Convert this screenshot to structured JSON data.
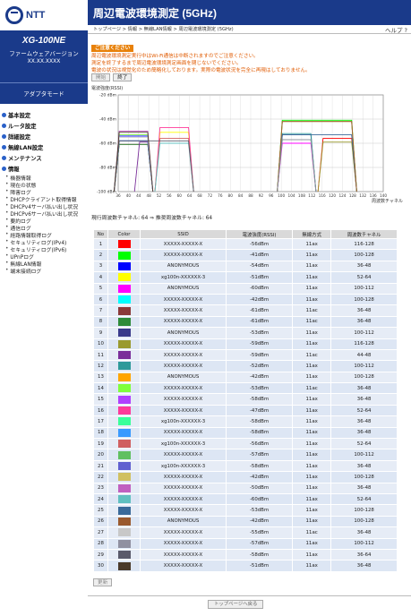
{
  "brand": "NTT",
  "model": {
    "name": "XG-100NE",
    "fw_label": "ファームウェアバージョン",
    "fw_version": "XX.XX.XXXX"
  },
  "adapter_mode": "アダプタモード",
  "menu": [
    {
      "type": "grp",
      "label": "基本設定"
    },
    {
      "type": "grp",
      "label": "ルータ設定"
    },
    {
      "type": "grp",
      "label": "詳細設定"
    },
    {
      "type": "grp",
      "label": "無線LAN設定"
    },
    {
      "type": "grp",
      "label": "メンテナンス"
    },
    {
      "type": "grp",
      "label": "情報"
    },
    {
      "type": "sub",
      "label": "機器情報"
    },
    {
      "type": "sub",
      "label": "現在の状態"
    },
    {
      "type": "sub",
      "label": "障害ログ"
    },
    {
      "type": "sub",
      "label": "DHCPクライアント取得情報"
    },
    {
      "type": "sub",
      "label": "DHCPv4サーバ払い出し状況"
    },
    {
      "type": "sub",
      "label": "DHCPv6サーバ払い出し状況"
    },
    {
      "type": "sub",
      "label": "要約ログ"
    },
    {
      "type": "sub",
      "label": "通信ログ"
    },
    {
      "type": "sub",
      "label": "経路情報取得ログ"
    },
    {
      "type": "sub",
      "label": "セキュリティログ(IPv4)"
    },
    {
      "type": "sub",
      "label": "セキュリティログ(IPv6)"
    },
    {
      "type": "sub",
      "label": "UPnPログ"
    },
    {
      "type": "sub",
      "label": "無線LAN情報"
    },
    {
      "type": "sub",
      "label": "端末接続ログ"
    }
  ],
  "title": "周辺電波環境測定 (5GHz)",
  "breadcrumb": "トップページ > 情報 > 無線LAN情報 > 周辺電波環境測定 (5GHz)",
  "help": "ヘルプ ?",
  "caution": {
    "tag": "ご注意ください",
    "lines": [
      "周辺電波環境測定実行中はWi-Fi通信は中断されますのでご注意ください。",
      "測定を終了するまで周辺電波環境測定画面を閉じないでください。",
      "電波の状況は視覚化のため簡略化しております。実際の電波状況を完全に再現はしておりません。"
    ]
  },
  "buttons": {
    "start": "開始",
    "stop": "終了",
    "update": "更新",
    "top": "トップページへ戻る"
  },
  "status": {
    "text": "現行周波数チャネル: 64 ⇒ 推奨周波数チャネル: 64"
  },
  "table": {
    "headers": [
      "No",
      "Color",
      "SSID",
      "電波強度(RSSI)",
      "無線方式",
      "周波数チャネル"
    ],
    "rows": [
      {
        "no": "1",
        "color": "#ff0000",
        "ssid": "XXXXX-XXXXX-X",
        "rssi": "-56dBm",
        "mode": "11ax",
        "ch": "116-128"
      },
      {
        "no": "2",
        "color": "#00ff00",
        "ssid": "XXXXX-XXXXX-X",
        "rssi": "-41dBm",
        "mode": "11ax",
        "ch": "100-128"
      },
      {
        "no": "3",
        "color": "#0000ff",
        "ssid": "ANONYMOUS",
        "rssi": "-54dBm",
        "mode": "11ax",
        "ch": "36-48"
      },
      {
        "no": "4",
        "color": "#ffff00",
        "ssid": "xg100n-XXXXXX-3",
        "rssi": "-51dBm",
        "mode": "11ax",
        "ch": "52-64"
      },
      {
        "no": "5",
        "color": "#ff00ff",
        "ssid": "ANONYMOUS",
        "rssi": "-60dBm",
        "mode": "11ax",
        "ch": "100-112"
      },
      {
        "no": "6",
        "color": "#00ffff",
        "ssid": "XXXXX-XXXXX-X",
        "rssi": "-42dBm",
        "mode": "11ax",
        "ch": "100-128"
      },
      {
        "no": "7",
        "color": "#8b3a3a",
        "ssid": "XXXXX-XXXXX-X",
        "rssi": "-61dBm",
        "mode": "11ac",
        "ch": "36-48"
      },
      {
        "no": "8",
        "color": "#2e8b3a",
        "ssid": "XXXXX-XXXXX-X",
        "rssi": "-61dBm",
        "mode": "11ac",
        "ch": "36-48"
      },
      {
        "no": "9",
        "color": "#3a3a8b",
        "ssid": "ANONYMOUS",
        "rssi": "-53dBm",
        "mode": "11ax",
        "ch": "100-112"
      },
      {
        "no": "10",
        "color": "#9a9a2e",
        "ssid": "XXXXX-XXXXX-X",
        "rssi": "-59dBm",
        "mode": "11ax",
        "ch": "116-128"
      },
      {
        "no": "11",
        "color": "#7a2e9a",
        "ssid": "XXXXX-XXXXX-X",
        "rssi": "-59dBm",
        "mode": "11ac",
        "ch": "44-48"
      },
      {
        "no": "12",
        "color": "#2e9a9a",
        "ssid": "XXXXX-XXXXX-X",
        "rssi": "-52dBm",
        "mode": "11ax",
        "ch": "100-112"
      },
      {
        "no": "13",
        "color": "#ffa500",
        "ssid": "ANONYMOUS",
        "rssi": "-42dBm",
        "mode": "11ax",
        "ch": "100-128"
      },
      {
        "no": "14",
        "color": "#7fff3a",
        "ssid": "XXXXX-XXXXX-X",
        "rssi": "-53dBm",
        "mode": "11ac",
        "ch": "36-48"
      },
      {
        "no": "15",
        "color": "#b040ff",
        "ssid": "XXXXX-XXXXX-X",
        "rssi": "-58dBm",
        "mode": "11ax",
        "ch": "36-48"
      },
      {
        "no": "16",
        "color": "#ff3a9a",
        "ssid": "XXXXX-XXXXX-X",
        "rssi": "-47dBm",
        "mode": "11ax",
        "ch": "52-64"
      },
      {
        "no": "17",
        "color": "#3aff9a",
        "ssid": "xg100n-XXXXXX-3",
        "rssi": "-58dBm",
        "mode": "11ax",
        "ch": "36-48"
      },
      {
        "no": "18",
        "color": "#3a9aff",
        "ssid": "XXXXX-XXXXX-X",
        "rssi": "-58dBm",
        "mode": "11ax",
        "ch": "36-48"
      },
      {
        "no": "19",
        "color": "#d06060",
        "ssid": "xg100n-XXXXXX-3",
        "rssi": "-56dBm",
        "mode": "11ax",
        "ch": "52-64"
      },
      {
        "no": "20",
        "color": "#60c060",
        "ssid": "XXXXX-XXXXX-X",
        "rssi": "-57dBm",
        "mode": "11ax",
        "ch": "100-112"
      },
      {
        "no": "21",
        "color": "#6060d0",
        "ssid": "xg100n-XXXXXX-3",
        "rssi": "-58dBm",
        "mode": "11ax",
        "ch": "36-48"
      },
      {
        "no": "22",
        "color": "#d0c060",
        "ssid": "XXXXX-XXXXX-X",
        "rssi": "-42dBm",
        "mode": "11ax",
        "ch": "100-128"
      },
      {
        "no": "23",
        "color": "#c060c0",
        "ssid": "XXXXX-XXXXX-X",
        "rssi": "-50dBm",
        "mode": "11ax",
        "ch": "36-48"
      },
      {
        "no": "24",
        "color": "#60c0c0",
        "ssid": "XXXXX-XXXXX-X",
        "rssi": "-60dBm",
        "mode": "11ax",
        "ch": "52-64"
      },
      {
        "no": "25",
        "color": "#3a6a9a",
        "ssid": "XXXXX-XXXXX-X",
        "rssi": "-53dBm",
        "mode": "11ax",
        "ch": "100-128"
      },
      {
        "no": "26",
        "color": "#9a5a2e",
        "ssid": "ANONYMOUS",
        "rssi": "-42dBm",
        "mode": "11ax",
        "ch": "100-128"
      },
      {
        "no": "27",
        "color": "#c8c8c8",
        "ssid": "XXXXX-XXXXX-X",
        "rssi": "-55dBm",
        "mode": "11ac",
        "ch": "36-48"
      },
      {
        "no": "28",
        "color": "#9090a0",
        "ssid": "XXXXX-XXXXX-X",
        "rssi": "-57dBm",
        "mode": "11ax",
        "ch": "100-112"
      },
      {
        "no": "29",
        "color": "#5a5a6a",
        "ssid": "XXXXX-XXXXX-X",
        "rssi": "-58dBm",
        "mode": "11ax",
        "ch": "36-64"
      },
      {
        "no": "30",
        "color": "#4a3a2a",
        "ssid": "XXXXX-XXXXX-X",
        "rssi": "-51dBm",
        "mode": "11ax",
        "ch": "36-48"
      }
    ]
  },
  "chart_data": {
    "type": "line",
    "ylabel": "電波強度(RSSI)",
    "xlabel": "周波数チャネル",
    "ylim": [
      -100,
      -20
    ],
    "y_ticks": [
      "-20 dBm",
      "-40 dBm",
      "-60 dBm",
      "-80 dBm",
      "-100 dBm"
    ],
    "x_ticks": [
      "36",
      "40",
      "44",
      "48",
      "52",
      "56",
      "60",
      "64",
      "68",
      "72",
      "76",
      "80",
      "84",
      "88",
      "92",
      "96",
      "100",
      "104",
      "108",
      "112",
      "116",
      "120",
      "124",
      "128",
      "132",
      "136",
      "140"
    ]
  }
}
